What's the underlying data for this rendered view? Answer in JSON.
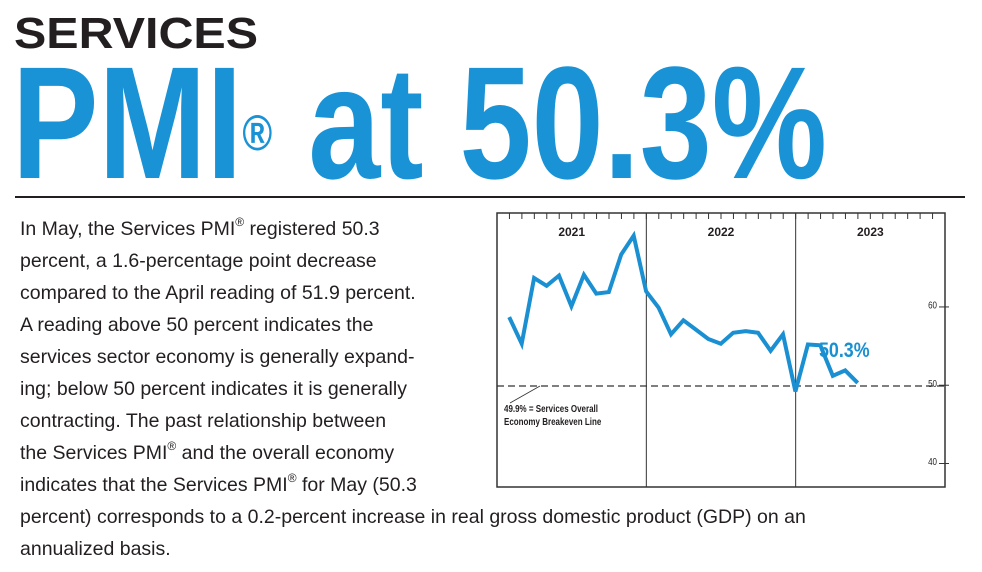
{
  "header": {
    "kicker": "SERVICES",
    "title": "PMI® at 50.3%"
  },
  "body": {
    "lines": [
      "In May, the Services PMI® registered 50.3",
      "percent, a 1.6-percentage point decrease",
      "compared to the April reading of 51.9 percent.",
      "A reading above 50 percent indicates the",
      "services sector economy is generally expand-",
      "ing; below 50 percent indicates it is generally",
      "contracting. The past relationship between",
      "the Services PMI® and the overall economy",
      "indicates that the Services PMI® for May (50.3",
      "percent) corresponds to a 0.2-percent increase in real gross domestic product (GDP) on an",
      "annualized basis."
    ]
  },
  "chart_data": {
    "type": "line",
    "year_labels": [
      "2021",
      "2022",
      "2023"
    ],
    "categories": [
      null,
      null,
      null,
      null,
      null,
      null,
      null,
      null,
      null,
      null,
      null,
      null,
      null,
      null,
      null,
      null,
      null,
      null,
      null,
      null,
      null,
      null,
      null,
      null,
      null,
      null,
      null,
      null,
      null,
      null,
      null,
      null,
      null,
      null,
      null,
      null
    ],
    "series": [
      {
        "name": null,
        "color": "#1a8fd1",
        "values": [
          58.7,
          55.3,
          63.7,
          62.7,
          64.0,
          60.1,
          64.1,
          61.7,
          61.9,
          66.7,
          69.1,
          62.0,
          59.9,
          56.5,
          58.3,
          57.1,
          55.9,
          55.3,
          56.7,
          56.9,
          56.7,
          54.4,
          56.5,
          49.2,
          55.2,
          55.1,
          51.2,
          51.9,
          50.3,
          null,
          null,
          null,
          null,
          null,
          null,
          null
        ]
      }
    ],
    "ylim": [
      37,
      72
    ],
    "yticks": [
      40,
      50,
      60
    ],
    "reference_line": 49.9,
    "annotation_breakeven": [
      "49.9% = Services Overall",
      "Economy Breakeven Line"
    ],
    "annotation_last": "50.3%"
  }
}
